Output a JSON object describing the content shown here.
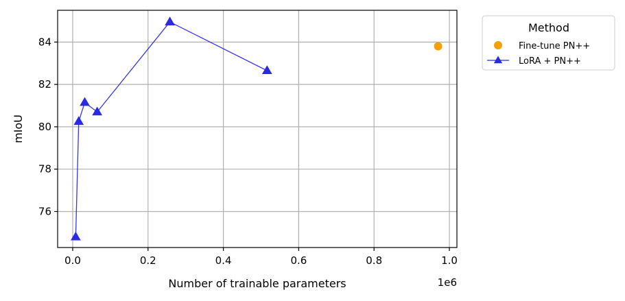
{
  "chart_data": {
    "type": "scatter",
    "xlabel": "Number of trainable parameters",
    "ylabel": "mIoU",
    "x_offset_label": "1e6",
    "xlim": [
      -0.04,
      1.02
    ],
    "ylim": [
      74.3,
      85.5
    ],
    "x_ticks": [
      0.0,
      0.2,
      0.4,
      0.6,
      0.8,
      1.0
    ],
    "x_tick_labels": [
      "0.0",
      "0.2",
      "0.4",
      "0.6",
      "0.8",
      "1.0"
    ],
    "y_ticks": [
      76,
      78,
      80,
      82,
      84
    ],
    "y_tick_labels": [
      "76",
      "78",
      "80",
      "82",
      "84"
    ],
    "grid": true,
    "legend": {
      "title": "Method",
      "placement": "outside-right-top"
    },
    "series": [
      {
        "name": "Fine-tune PN++",
        "type": "scatter",
        "marker": "circle",
        "color": "#f5a000",
        "x": [
          0.97
        ],
        "y": [
          83.8
        ]
      },
      {
        "name": "LoRA + PN++",
        "type": "line",
        "marker": "triangle",
        "color": "#2a2ae6",
        "x": [
          0.008,
          0.016,
          0.032,
          0.065,
          0.258,
          0.516
        ],
        "y": [
          74.8,
          80.25,
          81.15,
          80.7,
          84.95,
          82.65
        ]
      }
    ]
  }
}
